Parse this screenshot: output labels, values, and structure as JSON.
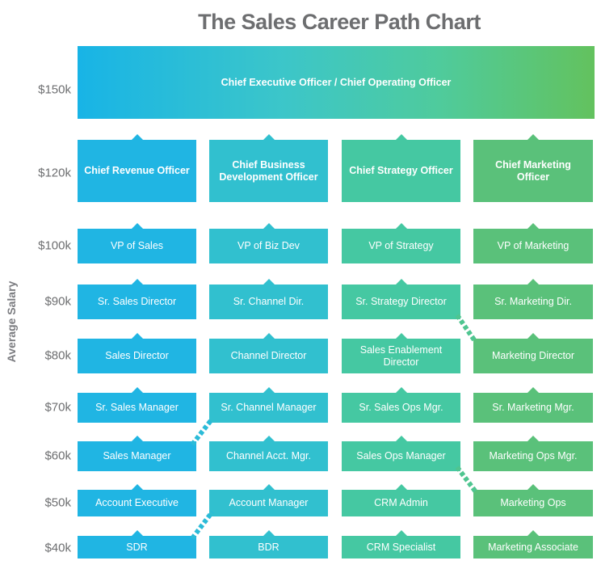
{
  "title": "The Sales Career Path Chart",
  "y_axis_label": "Average Salary",
  "salaries": [
    "$150k",
    "$120k",
    "$100k",
    "$90k",
    "$80k",
    "$70k",
    "$60k",
    "$50k",
    "$40k"
  ],
  "ceo": "Chief Executive Officer / Chief Operating Officer",
  "columns": [
    {
      "chief": "Chief Revenue Officer",
      "vp": "VP of Sales",
      "r90": "Sr. Sales Director",
      "r80": "Sales Director",
      "r70": "Sr. Sales Manager",
      "r60": "Sales Manager",
      "r50": "Account Executive",
      "r40": "SDR"
    },
    {
      "chief": "Chief Business Development Officer",
      "vp": "VP of Biz Dev",
      "r90": "Sr. Channel Dir.",
      "r80": "Channel Director",
      "r70": "Sr. Channel Manager",
      "r60": "Channel Acct. Mgr.",
      "r50": "Account Manager",
      "r40": "BDR"
    },
    {
      "chief": "Chief Strategy Officer",
      "vp": "VP of Strategy",
      "r90": "Sr. Strategy Director",
      "r80": "Sales Enablement Director",
      "r70": "Sr. Sales Ops Mgr.",
      "r60": "Sales Ops Manager",
      "r50": "CRM Admin",
      "r40": "CRM Specialist"
    },
    {
      "chief": "Chief Marketing Officer",
      "vp": "VP of Marketing",
      "r90": "Sr. Marketing Dir.",
      "r80": "Marketing Director",
      "r70": "Sr. Marketing Mgr.",
      "r60": "Marketing Ops Mgr.",
      "r50": "Marketing Ops",
      "r40": "Marketing Associate"
    }
  ],
  "colors": {
    "col0": "#20b5e3",
    "col1": "#31c0cf",
    "col2": "#45c8a2",
    "col3": "#5ac17a",
    "title": "#6d6e70"
  }
}
